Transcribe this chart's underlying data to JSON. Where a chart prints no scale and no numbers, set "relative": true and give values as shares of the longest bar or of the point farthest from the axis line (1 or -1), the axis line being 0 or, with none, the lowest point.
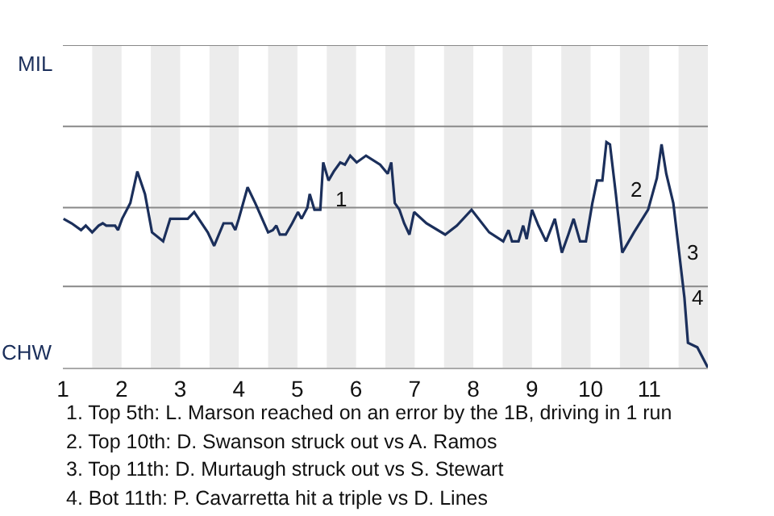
{
  "chart_data": {
    "type": "line",
    "relative": true,
    "x": [
      1.01,
      1.15,
      1.31,
      1.39,
      1.5,
      1.61,
      1.68,
      1.74,
      1.89,
      1.94,
      2.01,
      2.15,
      2.27,
      2.4,
      2.52,
      2.71,
      2.83,
      2.98,
      3.13,
      3.24,
      3.47,
      3.58,
      3.66,
      3.74,
      3.88,
      3.94,
      4,
      4.15,
      4.28,
      4.5,
      4.58,
      4.64,
      4.7,
      4.8,
      4.91,
      5.01,
      5.07,
      5.17,
      5.21,
      5.29,
      5.39,
      5.44,
      5.53,
      5.62,
      5.73,
      5.81,
      5.9,
      6.01,
      6.17,
      6.41,
      6.54,
      6.6,
      6.66,
      6.74,
      6.82,
      6.91,
      6.99,
      7.2,
      7.52,
      7.72,
      7.97,
      8.27,
      8.51,
      8.6,
      8.66,
      8.77,
      8.85,
      8.91,
      9,
      9.11,
      9.24,
      9.39,
      9.51,
      9.62,
      9.71,
      9.82,
      9.92,
      10.03,
      10.11,
      10.2,
      10.27,
      10.33,
      10.43,
      10.54,
      10.74,
      10.98,
      11.13,
      11.21,
      11.29,
      11.41,
      11.51,
      11.6,
      11.66,
      11.82,
      12
    ],
    "series": [
      {
        "color": "#1b2f5b",
        "values": [
          0.66,
          0.64,
          0.61,
          0.63,
          0.6,
          0.63,
          0.64,
          0.63,
          0.63,
          0.61,
          0.66,
          0.73,
          0.87,
          0.77,
          0.6,
          0.56,
          0.66,
          0.66,
          0.66,
          0.69,
          0.6,
          0.54,
          0.59,
          0.64,
          0.64,
          0.61,
          0.66,
          0.8,
          0.73,
          0.6,
          0.61,
          0.63,
          0.59,
          0.59,
          0.64,
          0.69,
          0.66,
          0.71,
          0.77,
          0.7,
          0.7,
          0.91,
          0.83,
          0.87,
          0.91,
          0.9,
          0.94,
          0.91,
          0.94,
          0.9,
          0.86,
          0.91,
          0.73,
          0.7,
          0.64,
          0.59,
          0.69,
          0.64,
          0.59,
          0.63,
          0.7,
          0.6,
          0.56,
          0.61,
          0.56,
          0.56,
          0.63,
          0.57,
          0.7,
          0.63,
          0.56,
          0.66,
          0.51,
          0.59,
          0.66,
          0.56,
          0.56,
          0.73,
          0.83,
          0.83,
          1,
          0.99,
          0.77,
          0.51,
          0.6,
          0.7,
          0.84,
          0.99,
          0.86,
          0.73,
          0.51,
          0.31,
          0.11,
          0.09,
          0
        ]
      }
    ],
    "xlim": [
      1,
      12
    ],
    "xticks": [
      1,
      2,
      3,
      4,
      5,
      6,
      7,
      8,
      9,
      10,
      11
    ],
    "ref_lines": [
      {
        "axis": "y",
        "value": 0.36,
        "color": "#888888"
      },
      {
        "axis": "y",
        "value": 0.71,
        "color": "#888888"
      },
      {
        "axis": "y",
        "value": 1.07,
        "color": "#888888"
      },
      {
        "axis": "y",
        "value": 1.43,
        "color": "#888888"
      }
    ],
    "legend": false,
    "marker": "none",
    "line_style": "solid",
    "bands": [
      {
        "axis": "x",
        "from": 1.5,
        "to": 2,
        "color": "#ececec"
      },
      {
        "axis": "x",
        "from": 2.5,
        "to": 3,
        "color": "#ececec"
      },
      {
        "axis": "x",
        "from": 3.5,
        "to": 4,
        "color": "#ececec"
      },
      {
        "axis": "x",
        "from": 4.5,
        "to": 5,
        "color": "#ececec"
      },
      {
        "axis": "x",
        "from": 5.5,
        "to": 6,
        "color": "#ececec"
      },
      {
        "axis": "x",
        "from": 6.5,
        "to": 7,
        "color": "#ececec"
      },
      {
        "axis": "x",
        "from": 7.5,
        "to": 8,
        "color": "#ececec"
      },
      {
        "axis": "x",
        "from": 8.5,
        "to": 9,
        "color": "#ececec"
      },
      {
        "axis": "x",
        "from": 9.5,
        "to": 10,
        "color": "#ececec"
      },
      {
        "axis": "x",
        "from": 10.5,
        "to": 11,
        "color": "#ececec"
      },
      {
        "axis": "x",
        "from": 11.5,
        "to": 12,
        "color": "#ececec"
      }
    ],
    "annotations": [
      "MIL",
      "CHW",
      {
        "text": "1",
        "x": 5.5,
        "y": 0.75
      },
      {
        "text": "2",
        "x": 10.54,
        "y": 0.79
      },
      {
        "text": "3",
        "x": 11.51,
        "y": 0.51
      },
      {
        "text": "4",
        "x": 11.6,
        "y": 0.31
      },
      "1. Top 5th: L. Marson reached on an error by the 1B, driving in 1 run",
      "2. Top 10th: D. Swanson struck out vs A. Ramos",
      "3. Top 11th: D. Murtaugh struck out vs S. Stewart",
      "4. Bot 11th: P. Cavarretta hit a triple vs D. Lines"
    ]
  }
}
